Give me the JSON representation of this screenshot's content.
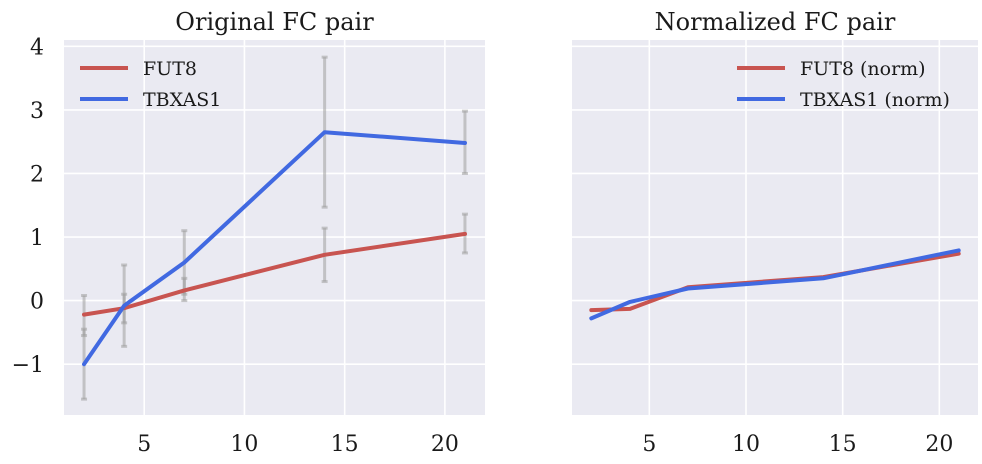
{
  "chart_data": [
    {
      "type": "line",
      "title": "Original FC pair",
      "xlabel": "",
      "ylabel": "",
      "xlim": [
        1.0,
        22.0
      ],
      "ylim": [
        -1.8,
        4.1
      ],
      "xticks": [
        5,
        10,
        15,
        20
      ],
      "yticks": [
        -1,
        0,
        1,
        2,
        3,
        4
      ],
      "xtick_labels": [
        "5",
        "10",
        "15",
        "20"
      ],
      "ytick_labels": [
        "−1",
        "0",
        "1",
        "2",
        "3",
        "4"
      ],
      "grid": true,
      "legend_position": "top-left",
      "x": [
        2,
        4,
        7,
        14,
        21
      ],
      "series": [
        {
          "name": "FUT8",
          "color": "#c85450",
          "values": [
            -0.22,
            -0.12,
            0.16,
            0.72,
            1.05
          ],
          "error_low": [
            -0.55,
            -0.35,
            0.0,
            0.3,
            0.75
          ],
          "error_high": [
            0.08,
            0.1,
            0.35,
            1.14,
            1.36
          ]
        },
        {
          "name": "TBXAS1",
          "color": "#4169e1",
          "values": [
            -1.0,
            -0.08,
            0.6,
            2.65,
            2.48
          ],
          "error_low": [
            -1.55,
            -0.72,
            0.1,
            1.47,
            2.0
          ],
          "error_high": [
            -0.45,
            0.56,
            1.1,
            3.83,
            2.98
          ]
        }
      ]
    },
    {
      "type": "line",
      "title": "Normalized FC pair",
      "xlabel": "",
      "ylabel": "",
      "xlim": [
        1.0,
        22.0
      ],
      "ylim": [
        -1.8,
        4.1
      ],
      "xticks": [
        5,
        10,
        15,
        20
      ],
      "yticks": [
        -1,
        0,
        1,
        2,
        3,
        4
      ],
      "xtick_labels": [
        "5",
        "10",
        "15",
        "20"
      ],
      "ytick_labels": [],
      "grid": true,
      "legend_position": "top-right",
      "x": [
        2,
        4,
        7,
        14,
        21
      ],
      "series": [
        {
          "name": "FUT8 (norm)",
          "color": "#c85450",
          "values": [
            -0.15,
            -0.13,
            0.21,
            0.37,
            0.74
          ]
        },
        {
          "name": "TBXAS1 (norm)",
          "color": "#4169e1",
          "values": [
            -0.28,
            -0.02,
            0.19,
            0.35,
            0.79
          ]
        }
      ]
    }
  ]
}
